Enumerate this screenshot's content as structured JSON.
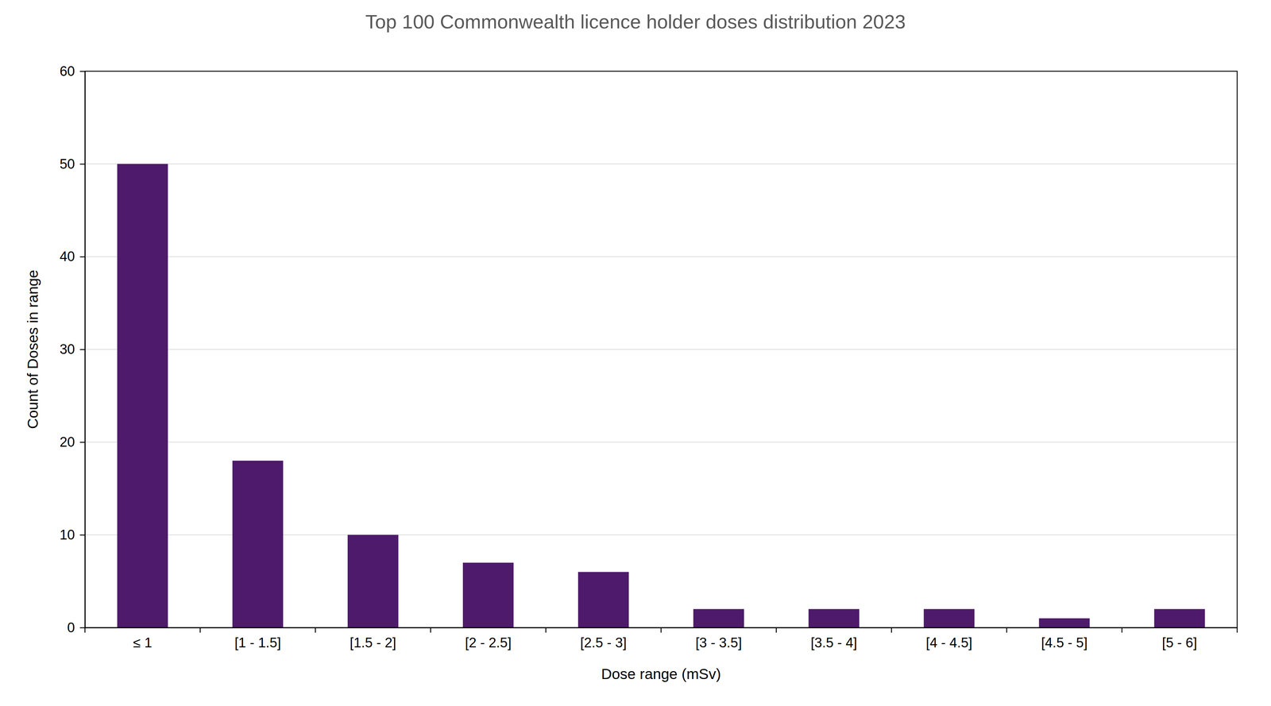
{
  "chart_data": {
    "type": "bar",
    "title": "Top 100 Commonwealth licence holder doses distribution 2023",
    "x_label": "Dose range (mSv)",
    "y_label": "Count of Doses in range",
    "categories": [
      "≤ 1",
      "[1 - 1.5]",
      "[1.5 - 2]",
      "[2 - 2.5]",
      "[2.5 - 3]",
      "[3 - 3.5]",
      "[3.5 - 4]",
      "[4 - 4.5]",
      "[4.5 - 5]",
      "[5 - 6]"
    ],
    "values": [
      50,
      18,
      10,
      7,
      6,
      2,
      2,
      2,
      1,
      2
    ],
    "color": "#4e1a6b",
    "ylim": [
      0,
      60
    ],
    "yticks": [
      0,
      10,
      20,
      30,
      40,
      50,
      60
    ],
    "grid": true
  }
}
